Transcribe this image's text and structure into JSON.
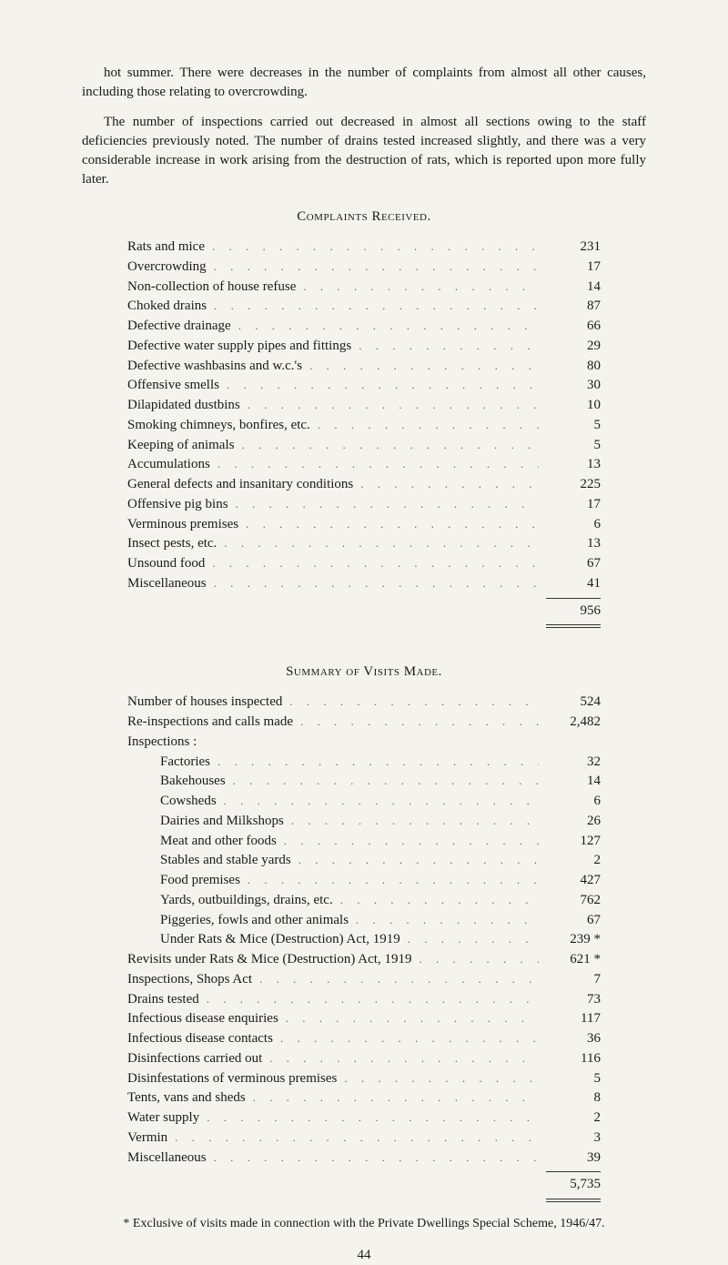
{
  "paragraphs": {
    "p1": "hot summer. There were decreases in the number of complaints from almost all other causes, including those relating to overcrowding.",
    "p2": "The number of inspections carried out decreased in almost all sections owing to the staff deficiencies previously noted. The number of drains tested increased slightly, and there was a very considerable increase in work arising from the destruction of rats, which is reported upon more fully later."
  },
  "complaints": {
    "heading": "Complaints Received.",
    "rows": [
      {
        "label": "Rats and mice",
        "value": "231"
      },
      {
        "label": "Overcrowding",
        "value": "17"
      },
      {
        "label": "Non-collection of house refuse",
        "value": "14"
      },
      {
        "label": "Choked drains",
        "value": "87"
      },
      {
        "label": "Defective drainage",
        "value": "66"
      },
      {
        "label": "Defective water supply pipes and fittings",
        "value": "29"
      },
      {
        "label": "Defective washbasins and w.c.'s",
        "value": "80"
      },
      {
        "label": "Offensive smells",
        "value": "30"
      },
      {
        "label": "Dilapidated dustbins",
        "value": "10"
      },
      {
        "label": "Smoking chimneys, bonfires, etc.",
        "value": "5"
      },
      {
        "label": "Keeping of animals",
        "value": "5"
      },
      {
        "label": "Accumulations",
        "value": "13"
      },
      {
        "label": "General defects and insanitary conditions",
        "value": "225"
      },
      {
        "label": "Offensive pig bins",
        "value": "17"
      },
      {
        "label": "Verminous premises",
        "value": "6"
      },
      {
        "label": "Insect pests, etc.",
        "value": "13"
      },
      {
        "label": "Unsound food",
        "value": "67"
      },
      {
        "label": "Miscellaneous",
        "value": "41"
      }
    ],
    "total": "956"
  },
  "visits": {
    "heading": "Summary of Visits Made.",
    "rows": [
      {
        "label": "Number of houses inspected",
        "value": "524",
        "indent": false
      },
      {
        "label": "Re-inspections and calls made",
        "value": "2,482",
        "indent": false
      },
      {
        "label": "Inspections :",
        "value": "",
        "indent": false,
        "nolabel": true
      },
      {
        "label": "Factories",
        "value": "32",
        "indent": true
      },
      {
        "label": "Bakehouses",
        "value": "14",
        "indent": true
      },
      {
        "label": "Cowsheds",
        "value": "6",
        "indent": true
      },
      {
        "label": "Dairies and Milkshops",
        "value": "26",
        "indent": true
      },
      {
        "label": "Meat and other foods",
        "value": "127",
        "indent": true
      },
      {
        "label": "Stables and stable yards",
        "value": "2",
        "indent": true
      },
      {
        "label": "Food premises",
        "value": "427",
        "indent": true
      },
      {
        "label": "Yards, outbuildings, drains, etc.",
        "value": "762",
        "indent": true
      },
      {
        "label": "Piggeries, fowls and other animals",
        "value": "67",
        "indent": true
      },
      {
        "label": "Under Rats & Mice (Destruction) Act, 1919",
        "value": "239 *",
        "indent": true
      },
      {
        "label": "Revisits under Rats & Mice (Destruction) Act, 1919",
        "value": "621 *",
        "indent": false
      },
      {
        "label": "Inspections, Shops Act",
        "value": "7",
        "indent": false
      },
      {
        "label": "Drains tested",
        "value": "73",
        "indent": false
      },
      {
        "label": "Infectious disease enquiries",
        "value": "117",
        "indent": false
      },
      {
        "label": "Infectious disease contacts",
        "value": "36",
        "indent": false
      },
      {
        "label": "Disinfections carried out",
        "value": "116",
        "indent": false
      },
      {
        "label": "Disinfestations of verminous premises",
        "value": "5",
        "indent": false
      },
      {
        "label": "Tents, vans and sheds",
        "value": "8",
        "indent": false
      },
      {
        "label": "Water supply",
        "value": "2",
        "indent": false
      },
      {
        "label": "Vermin",
        "value": "3",
        "indent": false
      },
      {
        "label": "Miscellaneous",
        "value": "39",
        "indent": false
      }
    ],
    "total": "5,735"
  },
  "footnote": "* Exclusive of visits made in connection with the Private Dwellings Special Scheme, 1946/47.",
  "page_number": "44"
}
